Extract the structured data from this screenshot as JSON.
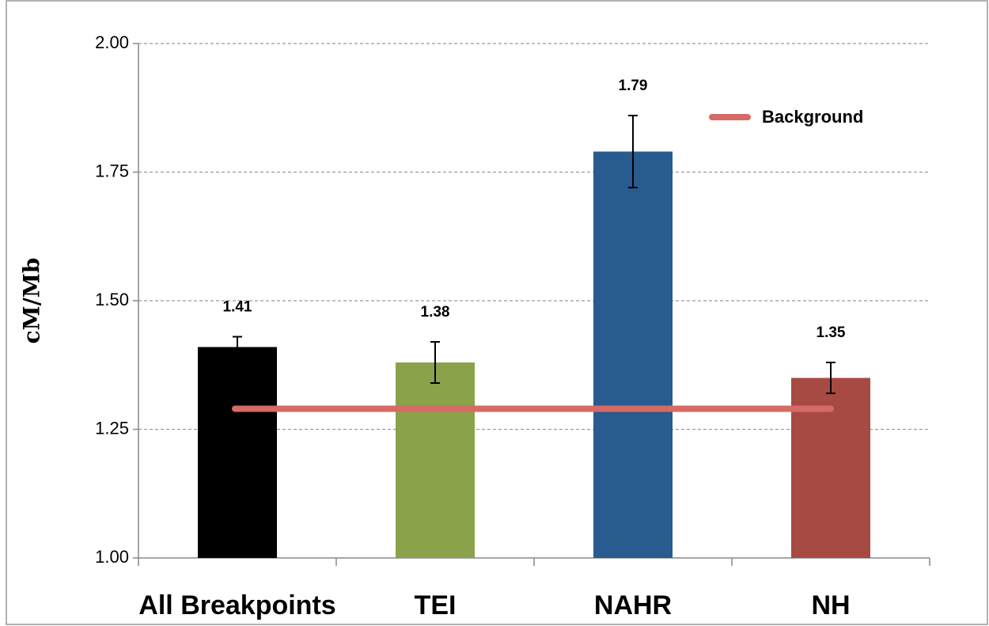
{
  "chart_data": {
    "type": "bar",
    "ylabel": "cM/Mb",
    "categories": [
      "All Breakpoints",
      "TEI",
      "NAHR",
      "NH"
    ],
    "values": [
      1.41,
      1.38,
      1.79,
      1.35
    ],
    "errors": [
      0.02,
      0.04,
      0.07,
      0.03
    ],
    "colors": [
      "#000000",
      "#8aa24a",
      "#285b8f",
      "#a84a44"
    ],
    "background": {
      "name": "Background",
      "value": 1.29,
      "color": "#d66a64"
    },
    "ylim": [
      1,
      2
    ],
    "yticks": [
      {
        "value": 1,
        "label": "1.00"
      },
      1.25,
      {
        "value": 1.5,
        "label": "1.50"
      },
      1.75,
      {
        "value": 2,
        "label": "2.00"
      }
    ],
    "grid": true
  }
}
